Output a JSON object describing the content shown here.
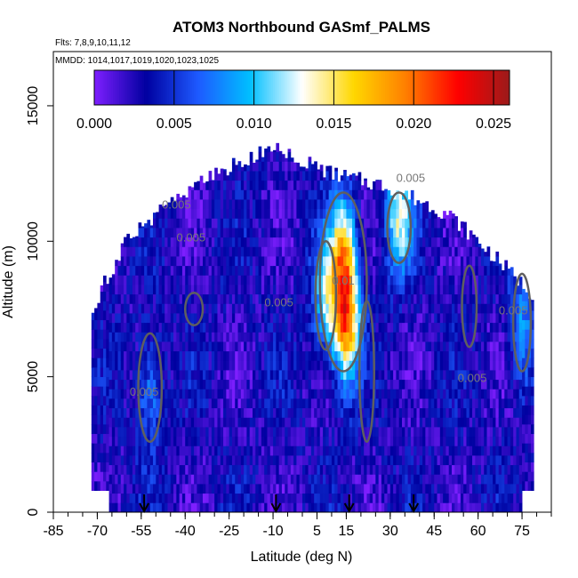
{
  "chart_data": {
    "type": "heatmap",
    "title": "ATOM3 Northbound GASmf_PALMS",
    "subtitle_flights": "Flts: 7,8,9,10,11,12",
    "subtitle_dates": "MMDD: 1014,1017,1019,1020,1023,1025",
    "xlabel": "Latitude (deg N)",
    "ylabel": "Altitude (m)",
    "xlim": [
      -85,
      85
    ],
    "ylim": [
      0,
      17000
    ],
    "x_ticks": [
      "-85",
      "-70",
      "-55",
      "-40",
      "-25",
      "-10",
      "5",
      "15",
      "30",
      "45",
      "60",
      "75"
    ],
    "y_ticks": [
      "0",
      "5000",
      "10000",
      "15000"
    ],
    "colorbar": {
      "min": 0.0,
      "max": 0.026,
      "tick_labels": [
        "0.000",
        "0.005",
        "0.010",
        "0.015",
        "0.020",
        "0.025"
      ],
      "colors": [
        "#7f1fff",
        "#0000a0",
        "#1e5aff",
        "#00bfff",
        "#ffffff",
        "#ffd700",
        "#ff7f00",
        "#ff0000",
        "#9b1b1b"
      ]
    },
    "contour_labels": [
      "0.005",
      "0.005",
      "0.005",
      "0.01",
      "0.005",
      "0.005",
      "0.005",
      "0.005"
    ],
    "flight_arrows_lat": [
      -54,
      -9,
      16,
      38
    ],
    "data_extent": {
      "lat_min": -72,
      "lat_max": 79,
      "alt_min": 0,
      "alt_max": 13500
    },
    "lat_band_max_alt": [
      {
        "lat": -72,
        "alt": 7500
      },
      {
        "lat": -60,
        "alt": 10000
      },
      {
        "lat": -45,
        "alt": 11500
      },
      {
        "lat": -30,
        "alt": 12500
      },
      {
        "lat": -10,
        "alt": 13500
      },
      {
        "lat": 10,
        "alt": 12500
      },
      {
        "lat": 30,
        "alt": 12000
      },
      {
        "lat": 50,
        "alt": 11000
      },
      {
        "lat": 65,
        "alt": 9500
      },
      {
        "lat": 79,
        "alt": 8000
      }
    ],
    "hotspots": [
      {
        "lat": 15,
        "alt": 7000,
        "value": 0.019
      },
      {
        "lat": 14,
        "alt": 9500,
        "value": 0.016
      },
      {
        "lat": 33,
        "alt": 11000,
        "value": 0.014
      },
      {
        "lat": 8,
        "alt": 8000,
        "value": 0.012
      },
      {
        "lat": -52,
        "alt": 4500,
        "value": 0.009
      },
      {
        "lat": 75,
        "alt": 7000,
        "value": 0.009
      }
    ]
  }
}
